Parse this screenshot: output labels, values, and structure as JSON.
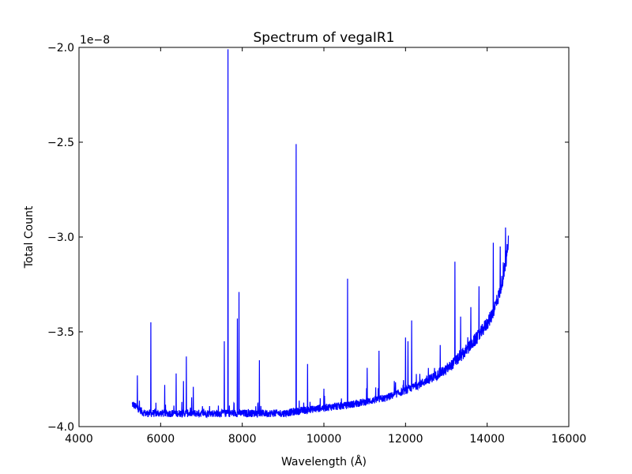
{
  "chart_data": {
    "type": "line",
    "title": "Spectrum of vegaIR1",
    "xlabel": "Wavelength (Å)",
    "ylabel": "Total Count",
    "offset_text": "1e−8",
    "xlim": [
      4000,
      16000
    ],
    "ylim": [
      -4.0,
      -2.0
    ],
    "y_multiplier": 1e-08,
    "xticks": [
      4000,
      6000,
      8000,
      10000,
      12000,
      14000,
      16000
    ],
    "xtick_labels": [
      "4000",
      "6000",
      "8000",
      "10000",
      "12000",
      "14000",
      "16000"
    ],
    "yticks": [
      -4.0,
      -3.5,
      -3.0,
      -2.5,
      -2.0
    ],
    "ytick_labels": [
      "−4.0",
      "−3.5",
      "−3.0",
      "−2.5",
      "−2.0"
    ],
    "grid": false,
    "legend": "none",
    "series": [
      {
        "color": "#0000ff",
        "baseline": [
          [
            5300,
            -3.88
          ],
          [
            5600,
            -3.93
          ],
          [
            6000,
            -3.93
          ],
          [
            6500,
            -3.93
          ],
          [
            7000,
            -3.93
          ],
          [
            7500,
            -3.93
          ],
          [
            8000,
            -3.93
          ],
          [
            8500,
            -3.93
          ],
          [
            9000,
            -3.93
          ],
          [
            9500,
            -3.915
          ],
          [
            10000,
            -3.9
          ],
          [
            10500,
            -3.89
          ],
          [
            11000,
            -3.87
          ],
          [
            11500,
            -3.85
          ],
          [
            12000,
            -3.81
          ],
          [
            12500,
            -3.76
          ],
          [
            13000,
            -3.7
          ],
          [
            13400,
            -3.62
          ],
          [
            13800,
            -3.52
          ],
          [
            14100,
            -3.42
          ],
          [
            14300,
            -3.3
          ],
          [
            14450,
            -3.15
          ],
          [
            14520,
            -3.02
          ]
        ],
        "peaks": [
          [
            5430,
            -3.73
          ],
          [
            5760,
            -3.45
          ],
          [
            6100,
            -3.78
          ],
          [
            6380,
            -3.72
          ],
          [
            6560,
            -3.76
          ],
          [
            6630,
            -3.63
          ],
          [
            6800,
            -3.79
          ],
          [
            7560,
            -3.55
          ],
          [
            7650,
            -2.01
          ],
          [
            7880,
            -3.43
          ],
          [
            7920,
            -3.29
          ],
          [
            8420,
            -3.65
          ],
          [
            9320,
            -2.51
          ],
          [
            9600,
            -3.67
          ],
          [
            10000,
            -3.8
          ],
          [
            10580,
            -3.22
          ],
          [
            11060,
            -3.69
          ],
          [
            11350,
            -3.6
          ],
          [
            12000,
            -3.53
          ],
          [
            12060,
            -3.55
          ],
          [
            12150,
            -3.44
          ],
          [
            12850,
            -3.57
          ],
          [
            13210,
            -3.13
          ],
          [
            13350,
            -3.42
          ],
          [
            13600,
            -3.37
          ],
          [
            13800,
            -3.26
          ],
          [
            14150,
            -3.03
          ],
          [
            14320,
            -3.05
          ],
          [
            14450,
            -2.95
          ]
        ]
      }
    ]
  }
}
